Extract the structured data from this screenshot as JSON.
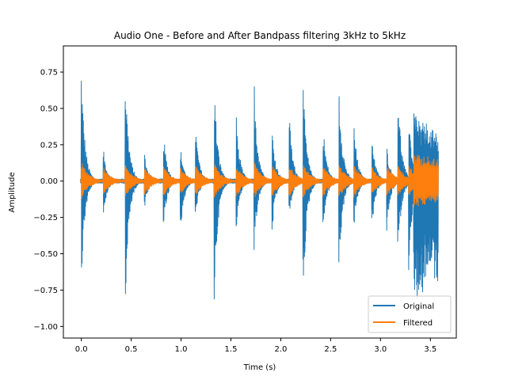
{
  "chart_data": {
    "type": "line",
    "title": "Audio One - Before and After Bandpass filtering 3kHz to 5kHz",
    "xlabel": "Time (s)",
    "ylabel": "Amplitude",
    "xlim": [
      -0.18,
      3.76
    ],
    "ylim": [
      -1.08,
      0.93
    ],
    "xticks": [
      0.0,
      0.5,
      1.0,
      1.5,
      2.0,
      2.5,
      3.0,
      3.5
    ],
    "xtick_labels": [
      "0.0",
      "0.5",
      "1.0",
      "1.5",
      "2.0",
      "2.5",
      "3.0",
      "3.5"
    ],
    "yticks": [
      0.75,
      0.5,
      0.25,
      0.0,
      -0.25,
      -0.5,
      -0.75,
      -1.0
    ],
    "ytick_labels": [
      "0.75",
      "0.50",
      "0.25",
      "0.00",
      "−0.25",
      "−0.50",
      "−0.75",
      "−1.00"
    ],
    "legend_position": "lower-right",
    "grid": false,
    "series": [
      {
        "name": "Original",
        "color": "#1f77b4",
        "onset_times": [
          0.0,
          0.22,
          0.44,
          0.63,
          0.82,
          0.99,
          1.14,
          1.33,
          1.55,
          1.73,
          1.91,
          2.08,
          2.22,
          2.42,
          2.58,
          2.73,
          2.91,
          3.06,
          3.17,
          3.28,
          3.33
        ],
        "peak_max": [
          0.79,
          0.23,
          0.78,
          0.22,
          0.38,
          0.27,
          0.45,
          0.75,
          0.52,
          0.78,
          0.41,
          0.54,
          0.75,
          0.45,
          0.77,
          0.45,
          0.38,
          0.27,
          0.76,
          0.55,
          0.51
        ],
        "peak_min": [
          -0.73,
          -0.25,
          -0.93,
          -0.22,
          -0.38,
          -0.42,
          -0.29,
          -0.94,
          -0.38,
          -0.56,
          -0.4,
          -0.29,
          -0.93,
          -0.38,
          -0.7,
          -0.37,
          -0.38,
          -0.4,
          -0.6,
          -0.8,
          -0.93
        ],
        "end_time": 3.58
      },
      {
        "name": "Filtered",
        "color": "#ff7f0e",
        "onset_times": [
          0.0,
          0.22,
          0.44,
          0.63,
          0.82,
          0.99,
          1.14,
          1.33,
          1.55,
          1.73,
          1.91,
          2.08,
          2.22,
          2.42,
          2.58,
          2.73,
          2.91,
          3.06,
          3.17,
          3.28,
          3.33
        ],
        "peak_max": [
          0.14,
          0.1,
          0.12,
          0.11,
          0.12,
          0.1,
          0.12,
          0.13,
          0.12,
          0.14,
          0.12,
          0.13,
          0.13,
          0.12,
          0.13,
          0.12,
          0.11,
          0.12,
          0.12,
          0.12,
          0.21
        ],
        "peak_min": [
          -0.13,
          -0.1,
          -0.12,
          -0.11,
          -0.12,
          -0.1,
          -0.12,
          -0.13,
          -0.12,
          -0.13,
          -0.12,
          -0.12,
          -0.13,
          -0.12,
          -0.13,
          -0.12,
          -0.11,
          -0.12,
          -0.12,
          -0.12,
          -0.2
        ],
        "end_time": 3.58
      }
    ]
  }
}
